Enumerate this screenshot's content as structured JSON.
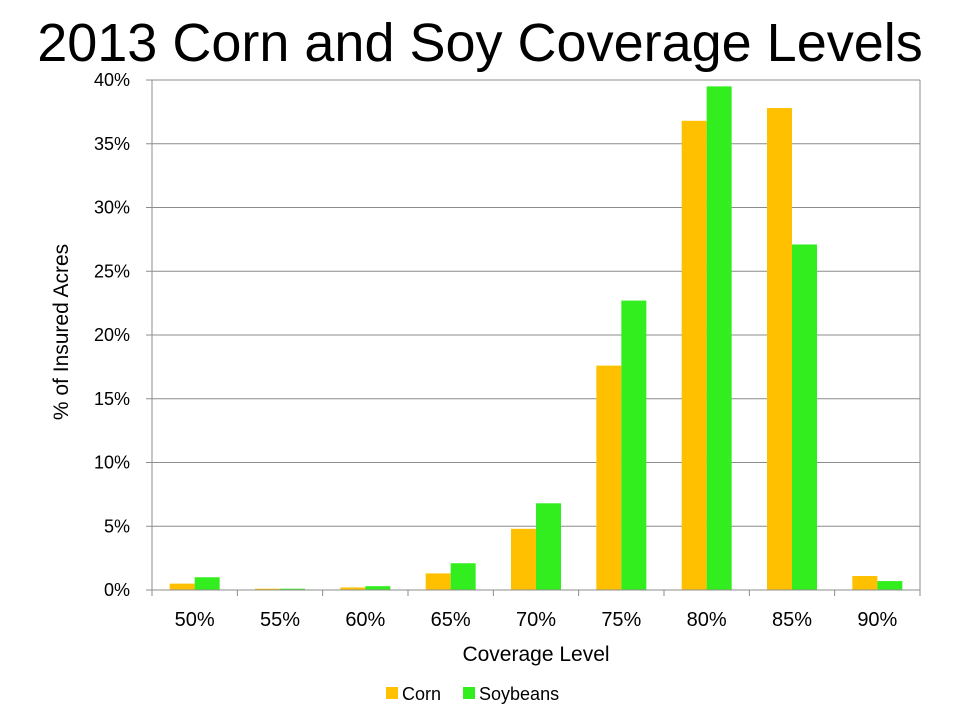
{
  "chart_data": {
    "type": "bar",
    "title": "2013 Corn and Soy Coverage Levels",
    "xlabel": "Coverage Level",
    "ylabel": "% of Insured Acres",
    "categories": [
      "50%",
      "55%",
      "60%",
      "65%",
      "70%",
      "75%",
      "80%",
      "85%",
      "90%"
    ],
    "yticks": [
      "0%",
      "5%",
      "10%",
      "15%",
      "20%",
      "25%",
      "30%",
      "35%",
      "40%"
    ],
    "ylim": [
      0,
      40
    ],
    "grid": true,
    "legend": "bottom",
    "series": [
      {
        "name": "Corn",
        "color": "#FFC000",
        "values": [
          0.5,
          0.1,
          0.2,
          1.3,
          4.8,
          17.6,
          36.8,
          37.8,
          1.1
        ]
      },
      {
        "name": "Soybeans",
        "color": "#33EE1E",
        "values": [
          1.0,
          0.1,
          0.3,
          2.1,
          6.8,
          22.7,
          39.5,
          27.1,
          0.7
        ]
      }
    ]
  }
}
